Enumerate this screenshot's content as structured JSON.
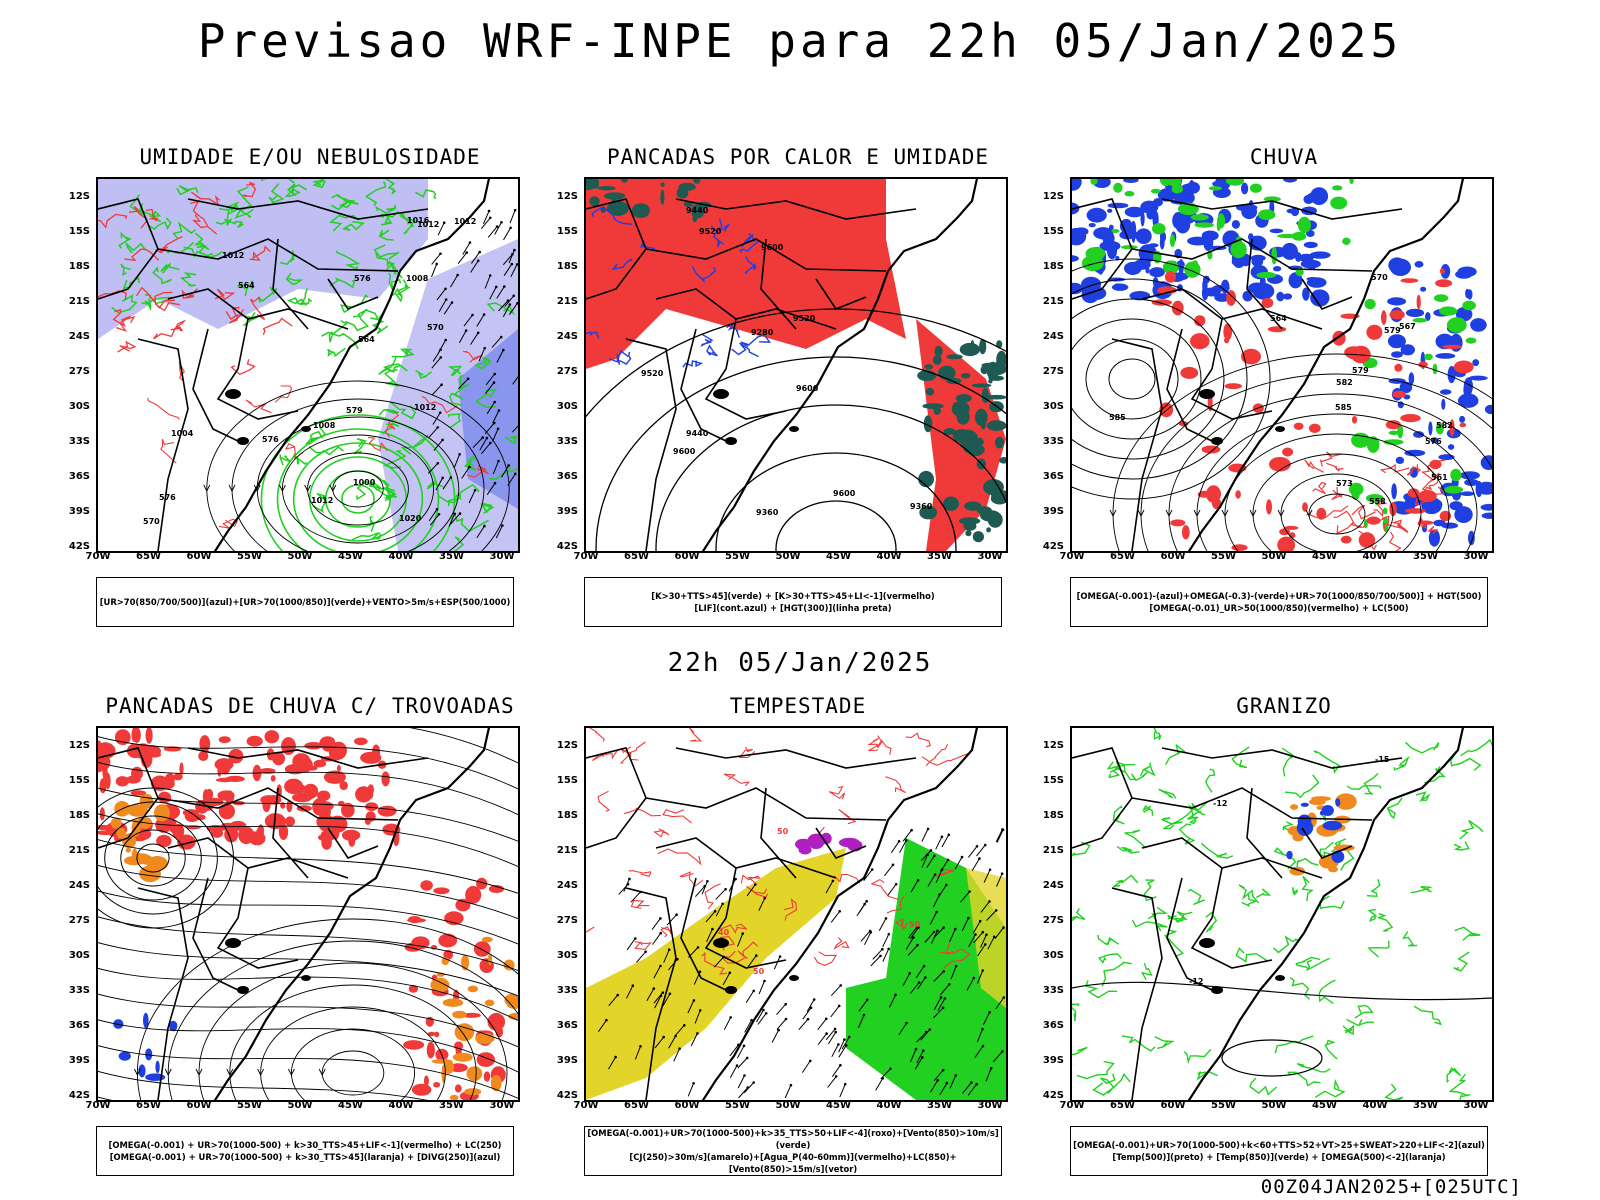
{
  "page": {
    "title": "Previsao WRF-INPE  para 22h 05/Jan/2025",
    "mid_title": "22h 05/Jan/2025",
    "footer": "00Z04JAN2025+[025UTC]"
  },
  "axes": {
    "lat_ticks": [
      "12S",
      "15S",
      "18S",
      "21S",
      "24S",
      "27S",
      "30S",
      "33S",
      "36S",
      "39S",
      "42S"
    ],
    "lon_ticks": [
      "70W",
      "65W",
      "60W",
      "55W",
      "50W",
      "45W",
      "40W",
      "35W",
      "30W"
    ]
  },
  "colors": {
    "blue": "#1f3fe0",
    "lavender": "#aaa9ef",
    "green": "#22d022",
    "red": "#f03a3a",
    "dark_green": "#1f5a52",
    "yellow": "#e3d42a",
    "orange": "#f08a1e",
    "purple": "#b020c0",
    "black": "#000000"
  },
  "panels": [
    {
      "title": "UMIDADE E/OU NEBULOSIDADE",
      "legend": [
        "[UR>70(850/700/500)](azul)+[UR>70(1000/850)](verde)+VENTO>5m/s+ESP(500/1000)"
      ],
      "labels": [
        "1012",
        "1012",
        "1012",
        "1012",
        "1008",
        "1012",
        "1016",
        "1020",
        "1000",
        "1004",
        "1008",
        "576",
        "576",
        "576",
        "570",
        "570",
        "564",
        "579",
        "564"
      ]
    },
    {
      "title": "PANCADAS POR CALOR E UMIDADE",
      "legend": [
        "[K>30+TTS>45](verde) + [K>30+TTS>45+LI<-1](vermelho)",
        "[LIF](cont.azul) + [HGT(300)](linha preta)"
      ],
      "labels": [
        "9600",
        "9600",
        "9600",
        "9520",
        "9520",
        "9440",
        "9360",
        "9280",
        "9440",
        "9520",
        "9600",
        "9360"
      ]
    },
    {
      "title": "CHUVA",
      "legend": [
        "[OMEGA(-0.001)-(azul)+OMEGA(-0.3)-(verde)+UR>70(1000/850/700/500)] + HGT(500)",
        "[OMEGA(-0.01)_UR>50(1000/850)(vermelho) + LC(500)"
      ],
      "labels": [
        "585",
        "582",
        "579",
        "576",
        "573",
        "570",
        "567",
        "564",
        "561",
        "558",
        "579",
        "582",
        "585"
      ]
    },
    {
      "title": "PANCADAS DE CHUVA C/ TROVOADAS",
      "legend": [
        "[OMEGA(-0.001) + UR>70(1000-500) + k>30_TTS>45+LIF<-1](vermelho) + LC(250)",
        "[OMEGA(-0.001) + UR>70(1000-500) + k>30_TTS>45](laranja) + [DIVG(250)](azul)"
      ],
      "labels": []
    },
    {
      "title": "TEMPESTADE",
      "legend": [
        "[OMEGA(-0.001)+UR>70(1000-500)+k>35_TTS>50+LIF<-4](roxo)+[Vento(850)>10m/s](verde)",
        "[CJ(250)>30m/s](amarelo)+[Agua_P(40-60mm)](vermelho)+LC(850)+[Vento(850)>15m/s](vetor)"
      ],
      "labels": [
        "50",
        "40",
        "50",
        "50"
      ]
    },
    {
      "title": "GRANIZO",
      "legend": [
        "[OMEGA(-0.001)+UR>70(1000-500)+k<60+TTS>52+VT>25+SWEAT>220+LIF<-2](azul)",
        "[Temp(500)](preto) + [Temp(850)](verde) + [OMEGA(500)<-2](laranja)"
      ],
      "labels": [
        "-15",
        "-12",
        "-12"
      ]
    }
  ]
}
